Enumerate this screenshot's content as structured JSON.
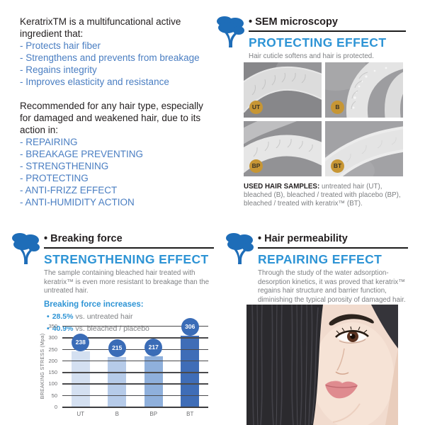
{
  "colors": {
    "accent_blue": "#2e94d5",
    "link_blue": "#4a7ec2",
    "tree_blue": "#1e6db8",
    "dark_text": "#231f20",
    "body_gray": "#7d7f82",
    "badge_gold": "#c79634"
  },
  "intro": {
    "heading": "KeratrixTM is a multifuncational active ingredient that:",
    "bullets": [
      "- Protects hair fiber",
      "- Strengthens and prevents from breakage",
      "- Regains integrity",
      "- Improves elasticity and resistance"
    ],
    "heading2": "Recommended for any hair type, especially for damaged and weakened hair, due to its action in:",
    "bullets2": [
      "- REPAIRING",
      "- BREAKAGE PREVENTING",
      "- STRENGTHENING",
      "- PROTECTING",
      "- ANTI-FRIZZ EFFECT",
      "- ANTI-HUMIDITY ACTION"
    ]
  },
  "sem": {
    "section_label": "• SEM microscopy",
    "effect_title": "PROTECTING EFFECT",
    "subtitle": "Hair cuticle softens and hair is protected.",
    "sample_labels": [
      "UT",
      "B",
      "BP",
      "BT"
    ],
    "caption_lead": "USED HAIR SAMPLES:",
    "caption_rest": " untreated hair (UT), bleached (B), bleached / treated with placebo (BP), bleached / treated with keratrix™ (BT)."
  },
  "breaking": {
    "section_label": "• Breaking force",
    "effect_title": "STRENGTHENING EFFECT",
    "body": "The sample containing bleached hair treated with keratrix™ is even more resistant to breakage than the untreated hair.",
    "subheading": "Breaking force increases:",
    "increases": [
      {
        "dot": "•",
        "pct": "28.5%",
        "rest": " vs. untreated hair"
      },
      {
        "dot": "•",
        "pct": "40.9%",
        "rest": " vs. bleached / placebo"
      }
    ]
  },
  "permeability": {
    "section_label": "• Hair permeability",
    "effect_title": "REPAIRING EFFECT",
    "body": "Through the study of the water adsorption-desorption kinetics, it was proved that keratrix™ regains hair structure and barrier function, diminishing the typical porosity of damaged hair."
  },
  "chart_data": {
    "type": "bar",
    "categories": [
      "UT",
      "B",
      "BP",
      "BT"
    ],
    "values": [
      238,
      215,
      217,
      306
    ],
    "title": "",
    "xlabel": "",
    "ylabel": "BREAKING STRESS (Mpa)",
    "ylim": [
      0,
      350
    ],
    "ytick_step": 50,
    "grid": true,
    "legend_position": "none",
    "bar_colors": [
      "#d4e0f1",
      "#b6cbe9",
      "#8fb0dc",
      "#3f6db7"
    ],
    "value_badge_color": "#3a6cb7"
  }
}
